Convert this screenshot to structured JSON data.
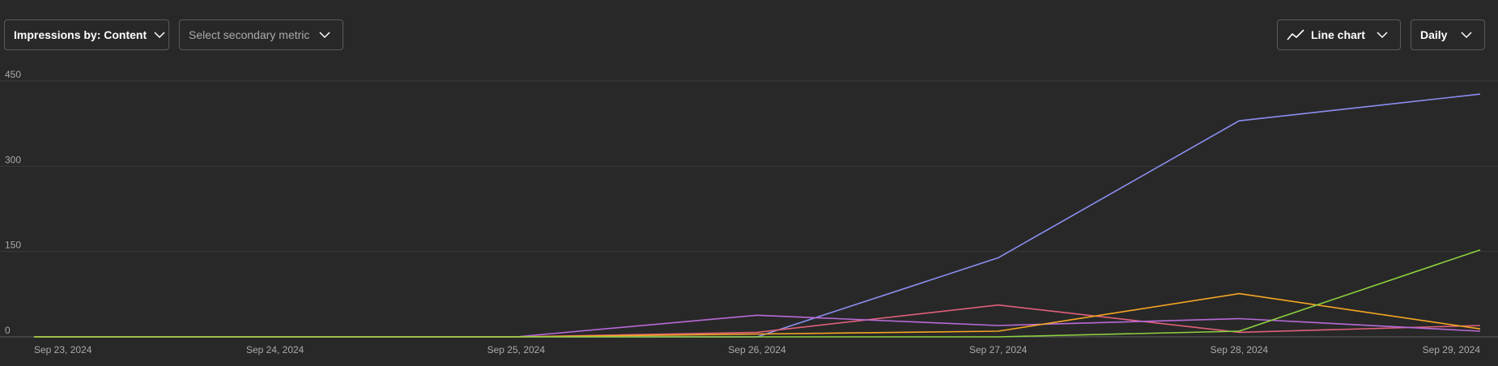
{
  "toolbar": {
    "primary_metric": "Impressions by: Content",
    "secondary_metric_placeholder": "Select secondary metric",
    "chart_type": "Line chart",
    "period": "Daily",
    "icons": {
      "primary_chevron": "chevron-down-icon",
      "secondary_chevron": "chevron-down-icon",
      "chart_type_icon": "line-chart-icon",
      "chart_type_chevron": "chevron-down-icon",
      "period_chevron": "chevron-down-icon"
    }
  },
  "chart_data": {
    "type": "line",
    "title": "",
    "xlabel": "",
    "ylabel": "",
    "categories": [
      "Sep 23, 2024",
      "Sep 24, 2024",
      "Sep 25, 2024",
      "Sep 26, 2024",
      "Sep 27, 2024",
      "Sep 28, 2024",
      "Sep 29, 2024"
    ],
    "yticks": [
      0,
      150,
      300,
      450
    ],
    "ylim": [
      0,
      450
    ],
    "grid": true,
    "legend": "none",
    "series": [
      {
        "color": "#8b8ff0",
        "values": [
          0,
          0,
          0,
          0,
          139,
          380,
          427
        ]
      },
      {
        "color": "#e0607a",
        "values": [
          0,
          0,
          0,
          8,
          56,
          8,
          20
        ]
      },
      {
        "color": "#b86ad8",
        "values": [
          0,
          0,
          0,
          38,
          20,
          32,
          10
        ]
      },
      {
        "color": "#f5a623",
        "values": [
          0,
          0,
          0,
          5,
          10,
          76,
          14
        ]
      },
      {
        "color": "#8fd13f",
        "values": [
          0,
          0,
          0,
          0,
          0,
          10,
          153
        ]
      }
    ]
  }
}
